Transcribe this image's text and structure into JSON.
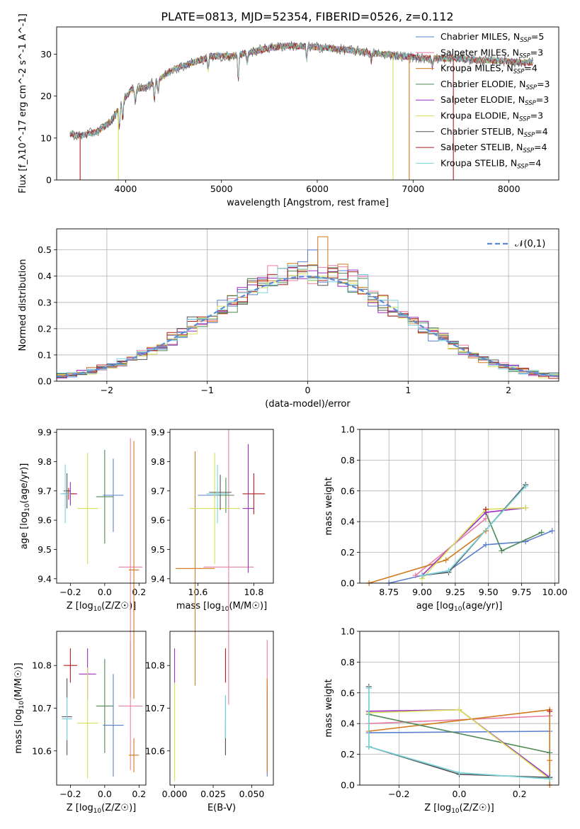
{
  "figure_title": "PLATE=0813, MJD=52354, FIBERID=0526, z=0.112",
  "chart_data": [
    {
      "id": "spectrum",
      "type": "line",
      "xlabel": "wavelength [Angstrom, rest frame]",
      "ylabel": "Flux [f_λ10^-17 erg cm^-2 s^-1 A^-1]",
      "xlim": [
        3280,
        8520
      ],
      "ylim": [
        0,
        36.5
      ],
      "xticks": [
        4000,
        5000,
        6000,
        7000,
        8000
      ],
      "yticks": [
        0,
        10,
        20,
        30
      ],
      "grid": false,
      "legend_position": "top-right",
      "continuum": [
        [
          3420,
          11
        ],
        [
          3520,
          10.5
        ],
        [
          3700,
          11.5
        ],
        [
          3850,
          14
        ],
        [
          3950,
          18
        ],
        [
          4050,
          21.5
        ],
        [
          4200,
          22
        ],
        [
          4350,
          24
        ],
        [
          4500,
          26.5
        ],
        [
          4700,
          28
        ],
        [
          4900,
          29.5
        ],
        [
          5100,
          29.5
        ],
        [
          5300,
          30.5
        ],
        [
          5500,
          31.5
        ],
        [
          5700,
          32
        ],
        [
          5900,
          31.8
        ],
        [
          6100,
          31.5
        ],
        [
          6300,
          31
        ],
        [
          6500,
          30.5
        ],
        [
          6700,
          30
        ],
        [
          6900,
          29.5
        ],
        [
          7100,
          29
        ],
        [
          7300,
          29
        ],
        [
          7500,
          29
        ],
        [
          7700,
          28.5
        ],
        [
          7900,
          28.5
        ],
        [
          8100,
          28
        ],
        [
          8250,
          28
        ]
      ],
      "series": [
        {
          "name": "Chabrier MILES, N_SSP=5",
          "label_main": "Chabrier MILES, N",
          "label_sub": "SSP",
          "label_tail": "=5",
          "color": "#5b7fcf"
        },
        {
          "name": "Salpeter MILES, N_SSP=3",
          "label_main": "Salpeter MILES, N",
          "label_sub": "SSP",
          "label_tail": "=3",
          "color": "#e77fa9"
        },
        {
          "name": "Kroupa MILES, N_SSP=4",
          "label_main": "Kroupa MILES, N",
          "label_sub": "SSP",
          "label_tail": "=4",
          "color": "#d17a1c"
        },
        {
          "name": "Chabrier ELODIE, N_SSP=3",
          "label_main": "Chabrier ELODIE, N",
          "label_sub": "SSP",
          "label_tail": "=3",
          "color": "#4f8a55"
        },
        {
          "name": "Salpeter ELODIE, N_SSP=3",
          "label_main": "Salpeter ELODIE, N",
          "label_sub": "SSP",
          "label_tail": "=3",
          "color": "#9b2fc0"
        },
        {
          "name": "Kroupa ELODIE, N_SSP=3",
          "label_main": "Kroupa ELODIE, N",
          "label_sub": "SSP",
          "label_tail": "=3",
          "color": "#d8e05a"
        },
        {
          "name": "Chabrier STELIB, N_SSP=4",
          "label_main": "Chabrier STELIB, N",
          "label_sub": "SSP",
          "label_tail": "=4",
          "color": "#555555"
        },
        {
          "name": "Salpeter STELIB, N_SSP=4",
          "label_main": "Salpeter STELIB, N",
          "label_sub": "SSP",
          "label_tail": "=4",
          "color": "#b01e1e"
        },
        {
          "name": "Kroupa STELIB, N_SSP=4",
          "label_main": "Kroupa STELIB, N",
          "label_sub": "SSP",
          "label_tail": "=4",
          "color": "#78d3db"
        }
      ],
      "dropouts": [
        {
          "series": 7,
          "x": 3525,
          "from": 0,
          "to": 10.5
        },
        {
          "series": 5,
          "x": 3925,
          "from": 0,
          "to": 17
        },
        {
          "series": 5,
          "x": 6790,
          "from": 0,
          "to": 30
        },
        {
          "series": 2,
          "x": 6960,
          "from": 0,
          "to": 29.5
        },
        {
          "series": 7,
          "x": 7420,
          "from": 0,
          "to": 29
        }
      ]
    },
    {
      "id": "residual_hist",
      "type": "line",
      "xlabel": "(data-model)/error",
      "ylabel": "Normed distribution",
      "xlim": [
        -2.5,
        2.5
      ],
      "ylim": [
        0,
        0.58
      ],
      "xticks": [
        -2,
        -1,
        0,
        1,
        2
      ],
      "yticks": [
        0.0,
        0.1,
        0.2,
        0.3,
        0.4,
        0.5
      ],
      "grid": true,
      "legend_position": "top-right",
      "reference_curve": {
        "label": "𝒩(0,1)",
        "color": "#5b8ad6",
        "style": "dashed"
      },
      "bin_width": 0.1,
      "series_colors": [
        "#5b7fcf",
        "#e77fa9",
        "#d17a1c",
        "#4f8a55",
        "#9b2fc0",
        "#d8e05a",
        "#555555",
        "#b01e1e",
        "#78d3db"
      ],
      "notable_bins": [
        {
          "x": 0.15,
          "y": 0.55,
          "series": 2
        },
        {
          "x": 0.1,
          "y": 0.5,
          "series": 0
        },
        {
          "x": -1.15,
          "y": 0.245,
          "series": 6
        }
      ]
    },
    {
      "id": "age_vs_Z",
      "type": "scatter",
      "xlabel": "Z [log10(Z/Z☉)]",
      "xlabel_main": "Z [log",
      "xlabel_sub": "10",
      "xlabel_tail": "(Z/Z☉)]",
      "ylabel": "age [log10(age/yr)]",
      "ylabel_main": "age  [log",
      "ylabel_sub": "10",
      "ylabel_tail": "(age/yr)]",
      "xlim": [
        -0.28,
        0.24
      ],
      "ylim": [
        9.385,
        9.91
      ],
      "xticks": [
        -0.2,
        0.0,
        0.2
      ],
      "yticks": [
        9.4,
        9.5,
        9.6,
        9.7,
        9.8,
        9.9
      ],
      "points": [
        {
          "color": "#5b7fcf",
          "x": 0.05,
          "y": 9.685,
          "xerr": 0.06,
          "yerr": 0.125
        },
        {
          "color": "#e77fa9",
          "x": 0.15,
          "y": 9.44,
          "xerr": 0.07,
          "yerr": 0.44
        },
        {
          "color": "#d17a1c",
          "x": 0.17,
          "y": 9.43,
          "xerr": 0.03,
          "yerr": 0.44
        },
        {
          "color": "#4f8a55",
          "x": 0.0,
          "y": 9.68,
          "xerr": 0.05,
          "yerr": 0.16
        },
        {
          "color": "#9b2fc0",
          "x": -0.2,
          "y": 9.69,
          "xerr": 0.04,
          "yerr": 0.04
        },
        {
          "color": "#d8e05a",
          "x": -0.1,
          "y": 9.64,
          "xerr": 0.06,
          "yerr": 0.19
        },
        {
          "color": "#555555",
          "x": -0.22,
          "y": 9.7,
          "xerr": 0.02,
          "yerr": 0.06
        },
        {
          "color": "#b01e1e",
          "x": -0.21,
          "y": 9.69,
          "xerr": 0.04,
          "yerr": 0.02
        },
        {
          "color": "#78d3db",
          "x": -0.23,
          "y": 9.69,
          "xerr": 0.03,
          "yerr": 0.1
        }
      ]
    },
    {
      "id": "age_vs_mass",
      "type": "scatter",
      "xlabel": "mass [log10(M/M☉)]",
      "xlabel_main": "mass [log",
      "xlabel_sub": "10",
      "xlabel_tail": "(M/M☉)]",
      "ylabel": "",
      "xlim": [
        10.5,
        10.87
      ],
      "ylim": [
        9.385,
        9.91
      ],
      "xticks": [
        10.6,
        10.8
      ],
      "yticks": [
        9.4,
        9.5,
        9.6,
        9.7,
        9.8,
        9.9
      ],
      "points": [
        {
          "color": "#5b7fcf",
          "x": 10.66,
          "y": 9.685,
          "xerr": 0.06,
          "yerr": 0.01
        },
        {
          "color": "#e77fa9",
          "x": 10.71,
          "y": 9.44,
          "xerr": 0.09,
          "yerr": 0.47
        },
        {
          "color": "#d17a1c",
          "x": 10.59,
          "y": 9.435,
          "xerr": 0.07,
          "yerr": 0.4
        },
        {
          "color": "#4f8a55",
          "x": 10.7,
          "y": 9.685,
          "xerr": 0.03,
          "yerr": 0.06
        },
        {
          "color": "#9b2fc0",
          "x": 10.78,
          "y": 9.64,
          "xerr": 0.02,
          "yerr": 0.22
        },
        {
          "color": "#d8e05a",
          "x": 10.66,
          "y": 9.64,
          "xerr": 0.09,
          "yerr": 0.19
        },
        {
          "color": "#555555",
          "x": 10.68,
          "y": 9.695,
          "xerr": 0.04,
          "yerr": 0.06
        },
        {
          "color": "#b01e1e",
          "x": 10.8,
          "y": 9.69,
          "xerr": 0.04,
          "yerr": 0.07
        },
        {
          "color": "#78d3db",
          "x": 10.67,
          "y": 9.69,
          "xerr": 0.04,
          "yerr": 0.1
        }
      ]
    },
    {
      "id": "weight_vs_age",
      "type": "line",
      "xlabel": "age [log10(age/yr)]",
      "xlabel_main": "age  [log",
      "xlabel_sub": "10",
      "xlabel_tail": "(age/yr)]",
      "ylabel": "mass weight",
      "xlim": [
        8.53,
        10.03
      ],
      "ylim": [
        0,
        1.0
      ],
      "xticks": [
        8.75,
        9.0,
        9.25,
        9.5,
        9.75,
        10.0
      ],
      "yticks": [
        0.0,
        0.2,
        0.4,
        0.6,
        0.8,
        1.0
      ],
      "grid": true,
      "series": [
        {
          "color": "#5b7fcf",
          "x": [
            8.75,
            9.0,
            9.2,
            9.48,
            9.78,
            9.98
          ],
          "y": [
            0.0,
            0.05,
            0.08,
            0.25,
            0.27,
            0.34
          ]
        },
        {
          "color": "#e77fa9",
          "x": [
            8.95,
            9.48
          ],
          "y": [
            0.05,
            0.42
          ]
        },
        {
          "color": "#d17a1c",
          "x": [
            8.6,
            9.18,
            9.48
          ],
          "y": [
            0.0,
            0.15,
            0.34
          ]
        },
        {
          "color": "#4f8a55",
          "x": [
            9.48,
            9.6,
            9.9
          ],
          "y": [
            0.46,
            0.21,
            0.33
          ]
        },
        {
          "color": "#9b2fc0",
          "x": [
            9.0,
            9.48,
            9.78
          ],
          "y": [
            0.05,
            0.46,
            0.49
          ]
        },
        {
          "color": "#d8e05a",
          "x": [
            9.0,
            9.48,
            9.78
          ],
          "y": [
            0.03,
            0.48,
            0.49
          ]
        },
        {
          "color": "#555555",
          "x": [
            9.0,
            9.2,
            9.78
          ],
          "y": [
            0.05,
            0.07,
            0.64
          ]
        },
        {
          "color": "#b01e1e",
          "x": [
            9.48
          ],
          "y": [
            0.48
          ]
        },
        {
          "color": "#78d3db",
          "x": [
            9.0,
            9.2,
            9.78
          ],
          "y": [
            0.05,
            0.08,
            0.63
          ]
        }
      ]
    },
    {
      "id": "mass_vs_Z",
      "type": "scatter",
      "xlabel": "Z [log10(Z/Z☉)]",
      "xlabel_main": "Z [log",
      "xlabel_sub": "10",
      "xlabel_tail": "(Z/Z☉)]",
      "ylabel": "mass [log10(M/M☉)]",
      "ylabel_main": "mass [log",
      "ylabel_sub": "10",
      "ylabel_tail": "(M/M☉)]",
      "xlim": [
        -0.28,
        0.24
      ],
      "ylim": [
        10.52,
        10.88
      ],
      "xticks": [
        -0.2,
        0.0,
        0.2
      ],
      "yticks": [
        10.6,
        10.7,
        10.8
      ],
      "points": [
        {
          "color": "#5b7fcf",
          "x": 0.05,
          "y": 10.66,
          "xerr": 0.06,
          "yerr": 0.12
        },
        {
          "color": "#e77fa9",
          "x": 0.15,
          "y": 10.705,
          "xerr": 0.07,
          "yerr": 0.15
        },
        {
          "color": "#d17a1c",
          "x": 0.17,
          "y": 10.59,
          "xerr": 0.03,
          "yerr": 0.04
        },
        {
          "color": "#4f8a55",
          "x": 0.0,
          "y": 10.705,
          "xerr": 0.05,
          "yerr": 0.11
        },
        {
          "color": "#9b2fc0",
          "x": -0.1,
          "y": 10.78,
          "xerr": 0.05,
          "yerr": 0.06
        },
        {
          "color": "#d8e05a",
          "x": -0.1,
          "y": 10.665,
          "xerr": 0.06,
          "yerr": 0.13
        },
        {
          "color": "#555555",
          "x": -0.22,
          "y": 10.68,
          "xerr": 0.03,
          "yerr": 0.09
        },
        {
          "color": "#b01e1e",
          "x": -0.2,
          "y": 10.8,
          "xerr": 0.04,
          "yerr": 0.04
        },
        {
          "color": "#78d3db",
          "x": -0.22,
          "y": 10.675,
          "xerr": 0.03,
          "yerr": 0.05
        }
      ]
    },
    {
      "id": "mass_vs_ebv",
      "type": "scatter",
      "xlabel": "E(B-V)",
      "ylabel": "",
      "xlim": [
        -0.003,
        0.064
      ],
      "ylim": [
        10.52,
        10.88
      ],
      "xticks": [
        0.0,
        0.025,
        0.05
      ],
      "xtick_labels": [
        "0.000",
        "0.025",
        "0.050"
      ],
      "yticks": [
        10.6,
        10.7,
        10.8
      ],
      "points": [
        {
          "color": "#5b7fcf",
          "x": 0.06,
          "y": 10.64,
          "xerr": 0,
          "yerr": 0.1
        },
        {
          "color": "#e77fa9",
          "x": 0.06,
          "y": 10.78,
          "xerr": 0,
          "yerr": 0.08
        },
        {
          "color": "#d17a1c",
          "x": 0.06,
          "y": 10.66,
          "xerr": 0,
          "yerr": 0.11
        },
        {
          "color": "#4f8a55",
          "x": 0.033,
          "y": 10.66,
          "xerr": 0,
          "yerr": 0.07
        },
        {
          "color": "#9b2fc0",
          "x": 0.0,
          "y": 10.8,
          "xerr": 0,
          "yerr": 0.04
        },
        {
          "color": "#d8e05a",
          "x": 0.0,
          "y": 10.645,
          "xerr": 0,
          "yerr": 0.115
        },
        {
          "color": "#555555",
          "x": 0.033,
          "y": 10.63,
          "xerr": 0,
          "yerr": 0.04
        },
        {
          "color": "#b01e1e",
          "x": 0.033,
          "y": 10.8,
          "xerr": 0,
          "yerr": 0.04
        },
        {
          "color": "#78d3db",
          "x": 0.033,
          "y": 10.68,
          "xerr": 0,
          "yerr": 0.05
        }
      ]
    },
    {
      "id": "weight_vs_Z",
      "type": "line",
      "xlabel": "Z [log10(Z/Z☉)]",
      "xlabel_main": "Z [log",
      "xlabel_sub": "10",
      "xlabel_tail": "(Z/Z☉)]",
      "ylabel": "mass weight",
      "xlim": [
        -0.33,
        0.33
      ],
      "ylim": [
        0,
        1.0
      ],
      "xticks": [
        -0.2,
        0.0,
        0.2
      ],
      "yticks": [
        0.0,
        0.2,
        0.4,
        0.6,
        0.8,
        1.0
      ],
      "grid": true,
      "series": [
        {
          "color": "#5b7fcf",
          "x": [
            -0.3,
            0.3
          ],
          "y": [
            0.34,
            0.35
          ]
        },
        {
          "color": "#e77fa9",
          "x": [
            -0.3,
            0.3
          ],
          "y": [
            0.4,
            0.45
          ]
        },
        {
          "color": "#d17a1c",
          "x": [
            -0.3,
            0.3,
            0.3,
            0.3
          ],
          "y": [
            0.35,
            0.49,
            0.16,
            0.0
          ]
        },
        {
          "color": "#4f8a55",
          "x": [
            -0.3,
            0.3
          ],
          "y": [
            0.46,
            0.21
          ]
        },
        {
          "color": "#9b2fc0",
          "x": [
            -0.3,
            0.0,
            0.3
          ],
          "y": [
            0.48,
            0.49,
            0.05
          ]
        },
        {
          "color": "#d8e05a",
          "x": [
            -0.3,
            0.0,
            0.3
          ],
          "y": [
            0.47,
            0.49,
            0.04
          ]
        },
        {
          "color": "#555555",
          "x": [
            -0.3,
            -0.3,
            0.0,
            0.3
          ],
          "y": [
            0.64,
            0.25,
            0.07,
            0.05
          ]
        },
        {
          "color": "#b01e1e",
          "x": [
            0.3
          ],
          "y": [
            0.48
          ]
        },
        {
          "color": "#78d3db",
          "x": [
            -0.3,
            -0.3,
            0.0,
            0.3
          ],
          "y": [
            0.63,
            0.25,
            0.08,
            0.04
          ]
        }
      ]
    }
  ]
}
